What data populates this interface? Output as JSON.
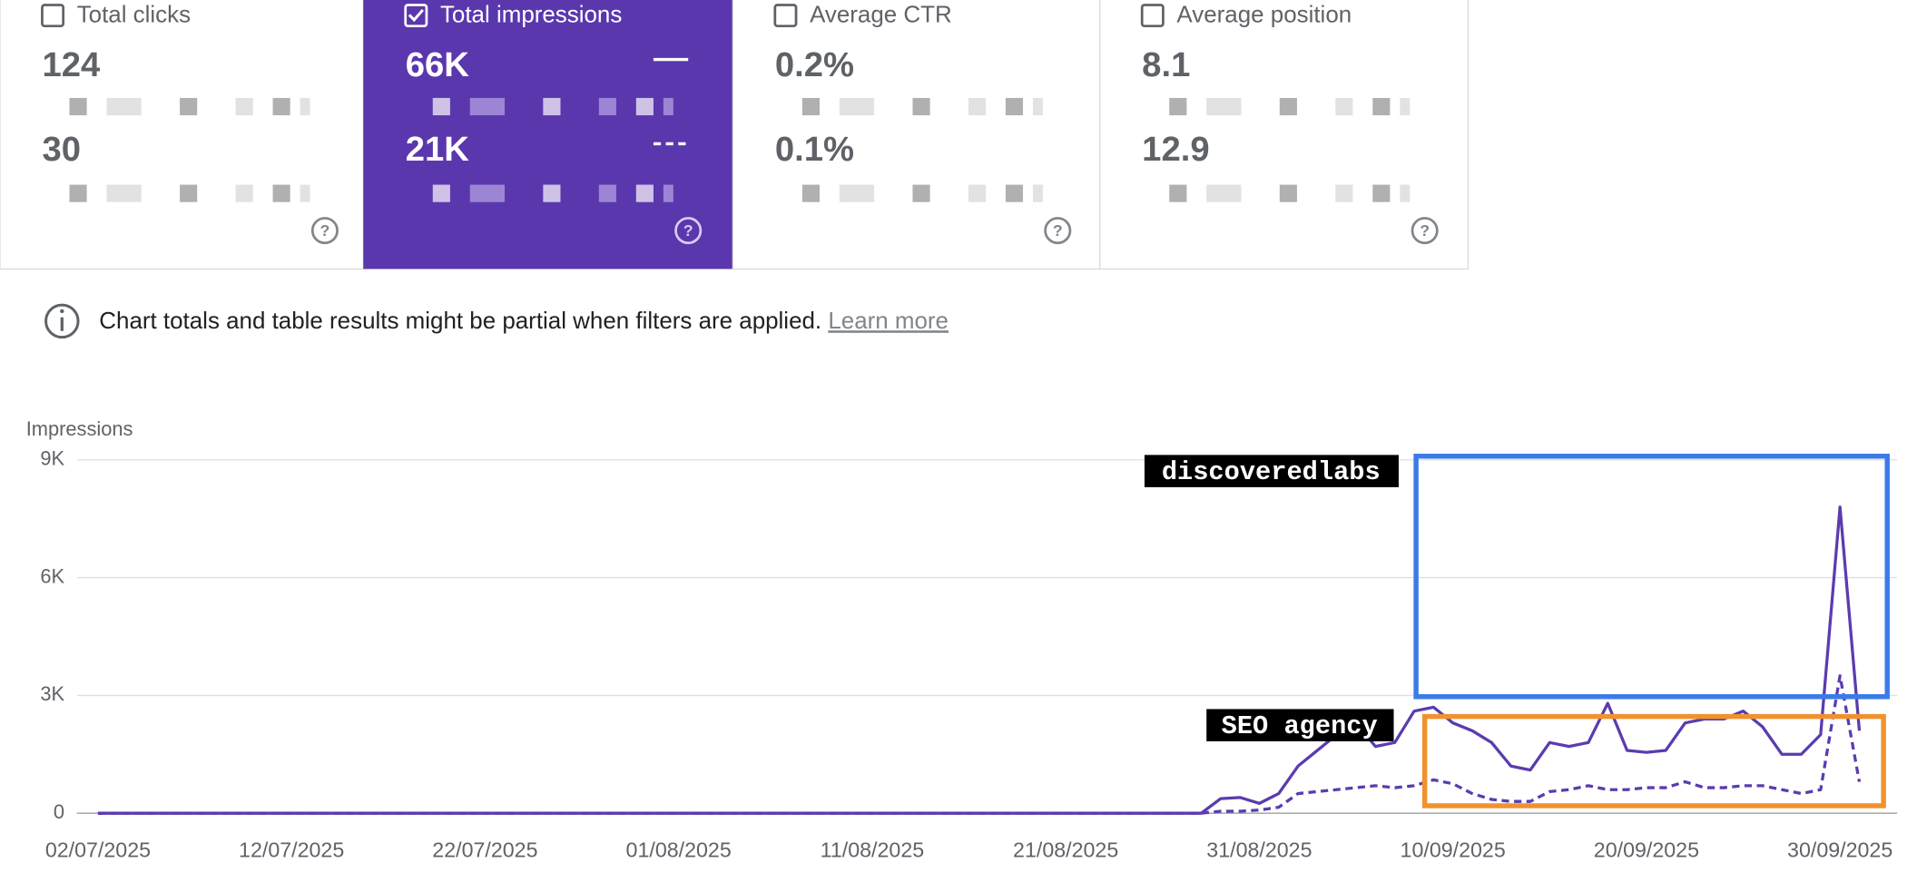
{
  "cards": [
    {
      "title": "Total clicks",
      "value": "124",
      "compare": "30",
      "checked": false
    },
    {
      "title": "Total impressions",
      "value": "66K",
      "compare": "21K",
      "checked": true
    },
    {
      "title": "Average CTR",
      "value": "0.2%",
      "compare": "0.1%",
      "checked": false
    },
    {
      "title": "Average position",
      "value": "8.1",
      "compare": "12.9",
      "checked": false
    }
  ],
  "notice": {
    "text": "Chart totals and table results might be partial when filters are applied.",
    "link": "Learn more"
  },
  "chart_data": {
    "type": "line",
    "y_label": "Impressions",
    "annotations": [
      "discoveredlabs",
      "SEO agency"
    ],
    "categories": [
      "02/07/2025",
      null,
      null,
      null,
      null,
      null,
      null,
      null,
      null,
      null,
      "12/07/2025",
      null,
      null,
      null,
      null,
      null,
      null,
      null,
      null,
      null,
      "22/07/2025",
      null,
      null,
      null,
      null,
      null,
      null,
      null,
      null,
      null,
      "01/08/2025",
      null,
      null,
      null,
      null,
      null,
      null,
      null,
      null,
      null,
      "11/08/2025",
      null,
      null,
      null,
      null,
      null,
      null,
      null,
      null,
      null,
      "21/08/2025",
      null,
      null,
      null,
      null,
      null,
      null,
      null,
      null,
      null,
      "31/08/2025",
      null,
      null,
      null,
      null,
      null,
      null,
      null,
      null,
      null,
      "10/09/2025",
      null,
      null,
      null,
      null,
      null,
      null,
      null,
      null,
      null,
      "20/09/2025",
      null,
      null,
      null,
      null,
      null,
      null,
      null,
      null,
      null,
      "30/09/2025",
      null
    ],
    "series": [
      {
        "color": "#5b3bb0",
        "dashed": false,
        "values": [
          0,
          0,
          0,
          0,
          0,
          0,
          0,
          0,
          0,
          0,
          0,
          0,
          0,
          0,
          0,
          0,
          0,
          0,
          0,
          0,
          0,
          0,
          0,
          0,
          0,
          0,
          0,
          0,
          0,
          0,
          0,
          0,
          0,
          0,
          0,
          0,
          0,
          0,
          0,
          0,
          0,
          0,
          0,
          0,
          0,
          0,
          0,
          0,
          0,
          0,
          0,
          0,
          0,
          0,
          0,
          0,
          0,
          0,
          370,
          400,
          250,
          500,
          1200,
          1600,
          2000,
          2300,
          1700,
          1800,
          2600,
          2700,
          2300,
          2100,
          1800,
          1200,
          1100,
          1800,
          1700,
          1800,
          2800,
          1600,
          1550,
          1600,
          2300,
          2400,
          2400,
          2600,
          2200,
          1500,
          1500,
          2000,
          7800,
          2100
        ]
      },
      {
        "color": "#5b3bb0",
        "dashed": true,
        "values": [
          0,
          0,
          0,
          0,
          0,
          0,
          0,
          0,
          0,
          0,
          0,
          0,
          0,
          0,
          0,
          0,
          0,
          0,
          0,
          0,
          0,
          0,
          0,
          0,
          0,
          0,
          0,
          0,
          0,
          0,
          0,
          0,
          0,
          0,
          0,
          0,
          0,
          0,
          0,
          0,
          0,
          0,
          0,
          0,
          0,
          0,
          0,
          0,
          0,
          0,
          0,
          0,
          0,
          0,
          0,
          0,
          0,
          0,
          50,
          50,
          80,
          150,
          500,
          550,
          600,
          650,
          700,
          650,
          700,
          850,
          750,
          500,
          350,
          300,
          300,
          550,
          600,
          700,
          600,
          600,
          650,
          650,
          800,
          650,
          650,
          700,
          700,
          600,
          500,
          600,
          3500,
          800
        ]
      }
    ],
    "ylim": [
      0,
      9000
    ],
    "yticks": [
      0,
      {
        "value": 3000,
        "label": "3K"
      },
      {
        "value": 6000,
        "label": "6K"
      },
      {
        "value": 9000,
        "label": "9K"
      }
    ],
    "grid": true
  }
}
